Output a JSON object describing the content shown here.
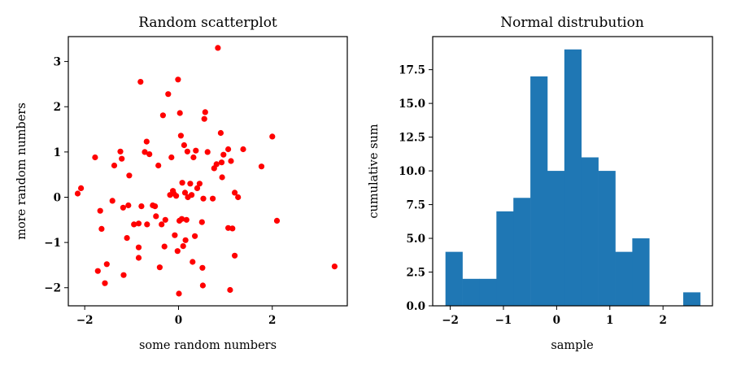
{
  "colors": {
    "scatter_marker": "#ff0000",
    "hist_bar": "#1f77b4",
    "axes": "#000000"
  },
  "chart_data": [
    {
      "type": "scatter",
      "title": "Random scatterplot",
      "xlabel": "some random numbers",
      "ylabel": "more random numbers",
      "xlim": [
        -2.35,
        3.6
      ],
      "ylim": [
        -2.4,
        3.55
      ],
      "xticks": [
        -2,
        0,
        2
      ],
      "yticks": [
        -2,
        -1,
        0,
        1,
        2,
        3
      ],
      "xticklabels": [
        "−2",
        "0",
        "2"
      ],
      "yticklabels": [
        "−2",
        "−1",
        "0",
        "1",
        "2",
        "3"
      ],
      "grid": false,
      "series": [
        {
          "points": [
            [
              -2.15,
              0.08
            ],
            [
              -2.08,
              0.2
            ],
            [
              -1.78,
              0.88
            ],
            [
              -1.72,
              -1.63
            ],
            [
              -1.67,
              -0.3
            ],
            [
              -1.64,
              -0.7
            ],
            [
              -1.57,
              -1.9
            ],
            [
              -1.53,
              -1.48
            ],
            [
              -1.41,
              -0.08
            ],
            [
              -1.37,
              0.7
            ],
            [
              -1.24,
              1.01
            ],
            [
              -1.21,
              0.85
            ],
            [
              -1.18,
              -0.23
            ],
            [
              -1.17,
              -1.72
            ],
            [
              -1.1,
              -0.9
            ],
            [
              -1.07,
              -0.18
            ],
            [
              -1.05,
              0.48
            ],
            [
              -0.95,
              -0.6
            ],
            [
              -0.85,
              -0.58
            ],
            [
              -0.85,
              -1.11
            ],
            [
              -0.85,
              -1.34
            ],
            [
              -0.81,
              2.55
            ],
            [
              -0.79,
              -0.2
            ],
            [
              -0.72,
              1.0
            ],
            [
              -0.68,
              1.23
            ],
            [
              -0.67,
              -0.6
            ],
            [
              -0.62,
              0.95
            ],
            [
              -0.55,
              -0.18
            ],
            [
              -0.5,
              -0.2
            ],
            [
              -0.48,
              -0.42
            ],
            [
              -0.43,
              0.7
            ],
            [
              -0.4,
              -1.55
            ],
            [
              -0.36,
              -0.6
            ],
            [
              -0.33,
              1.81
            ],
            [
              -0.3,
              -1.09
            ],
            [
              -0.28,
              -0.5
            ],
            [
              -0.22,
              2.28
            ],
            [
              -0.18,
              0.05
            ],
            [
              -0.15,
              0.88
            ],
            [
              -0.12,
              0.14
            ],
            [
              -0.1,
              0.08
            ],
            [
              -0.08,
              -0.84
            ],
            [
              -0.05,
              0.03
            ],
            [
              -0.02,
              -1.19
            ],
            [
              -0.01,
              2.6
            ],
            [
              0.01,
              -2.13
            ],
            [
              0.02,
              -0.52
            ],
            [
              0.03,
              1.86
            ],
            [
              0.05,
              1.36
            ],
            [
              0.07,
              -0.48
            ],
            [
              0.08,
              0.32
            ],
            [
              0.1,
              -1.08
            ],
            [
              0.12,
              1.15
            ],
            [
              0.14,
              0.1
            ],
            [
              0.15,
              -0.95
            ],
            [
              0.17,
              -0.5
            ],
            [
              0.19,
              1.01
            ],
            [
              0.2,
              0.0
            ],
            [
              0.25,
              0.3
            ],
            [
              0.28,
              0.05
            ],
            [
              0.3,
              -1.43
            ],
            [
              0.32,
              0.88
            ],
            [
              0.35,
              -0.86
            ],
            [
              0.37,
              1.03
            ],
            [
              0.4,
              0.2
            ],
            [
              0.45,
              0.3
            ],
            [
              0.5,
              -0.55
            ],
            [
              0.51,
              -1.56
            ],
            [
              0.52,
              -1.95
            ],
            [
              0.53,
              -0.03
            ],
            [
              0.55,
              1.73
            ],
            [
              0.57,
              1.88
            ],
            [
              0.62,
              1.0
            ],
            [
              0.73,
              -0.03
            ],
            [
              0.76,
              0.64
            ],
            [
              0.81,
              0.73
            ],
            [
              0.84,
              3.3
            ],
            [
              0.9,
              1.42
            ],
            [
              0.92,
              0.77
            ],
            [
              0.93,
              0.44
            ],
            [
              0.96,
              0.94
            ],
            [
              1.06,
              -0.68
            ],
            [
              1.06,
              1.06
            ],
            [
              1.1,
              -2.05
            ],
            [
              1.12,
              0.8
            ],
            [
              1.15,
              -0.69
            ],
            [
              1.2,
              -1.29
            ],
            [
              1.2,
              0.1
            ],
            [
              1.27,
              0.0
            ],
            [
              1.38,
              1.06
            ],
            [
              1.77,
              0.68
            ],
            [
              2.0,
              1.34
            ],
            [
              2.1,
              -0.52
            ],
            [
              3.33,
              -1.53
            ]
          ]
        }
      ]
    },
    {
      "type": "bar",
      "title": "Normal distrubution",
      "xlabel": "sample",
      "ylabel": "cumulative sum",
      "xlim": [
        -2.33,
        2.93
      ],
      "ylim": [
        0,
        19.95
      ],
      "xticks": [
        -2,
        -1,
        0,
        1,
        2
      ],
      "yticks": [
        0,
        2.5,
        5,
        7.5,
        10,
        12.5,
        15,
        17.5
      ],
      "xticklabels": [
        "−2",
        "−1",
        "0",
        "1",
        "2"
      ],
      "yticklabels": [
        "0.0",
        "2.5",
        "5.0",
        "7.5",
        "10.0",
        "12.5",
        "15.0",
        "17.5"
      ],
      "grid": false,
      "bin_start": -2.09,
      "bin_width": 0.3193,
      "values": [
        4,
        2,
        2,
        7,
        8,
        17,
        10,
        19,
        11,
        10,
        4,
        5,
        0,
        0,
        1
      ]
    }
  ]
}
